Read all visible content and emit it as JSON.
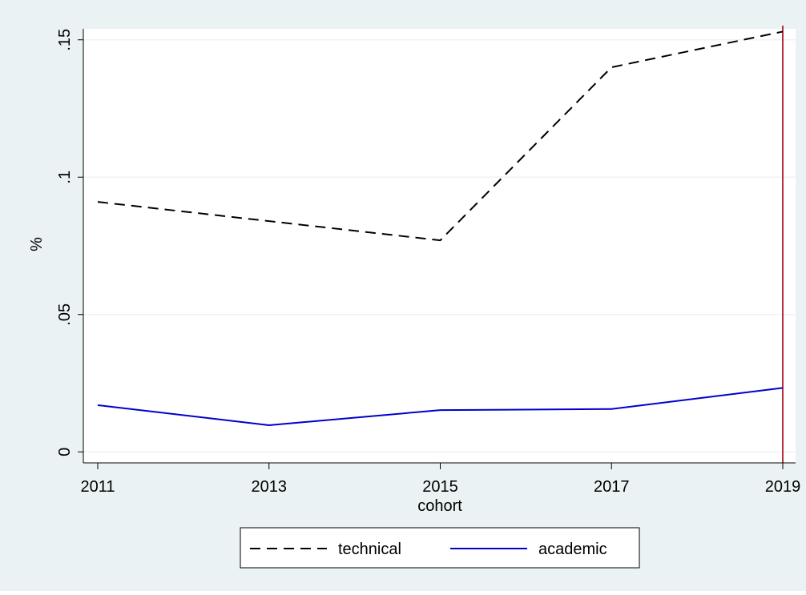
{
  "chart_data": {
    "type": "line",
    "title": "",
    "xlabel": "cohort",
    "ylabel": "%",
    "x": [
      2011,
      2013,
      2015,
      2017,
      2019
    ],
    "x_ticks": [
      2011,
      2013,
      2015,
      2017,
      2019
    ],
    "x_tick_labels": [
      "2011",
      "2013",
      "2015",
      "2017",
      "2019"
    ],
    "xlim": [
      2011,
      2019
    ],
    "y_ticks": [
      0,
      0.05,
      0.1,
      0.15
    ],
    "y_tick_labels": [
      "0",
      ".05",
      ".1",
      ".15"
    ],
    "ylim": [
      -0.004,
      0.154
    ],
    "grid": true,
    "legend": "bottom",
    "series": [
      {
        "name": "technical",
        "values": [
          0.091,
          0.084,
          0.077,
          0.14,
          0.153
        ],
        "color": "#000000",
        "style": "dashed"
      },
      {
        "name": "academic",
        "values": [
          0.017,
          0.0097,
          0.0152,
          0.0156,
          0.0233
        ],
        "color": "#0000cc",
        "style": "solid"
      }
    ],
    "reference_lines": [
      {
        "axis": "x",
        "value": 2019,
        "color": "#b2182b"
      }
    ],
    "colors": {
      "outer_background": "#eaf2f3",
      "plot_background": "#ffffff",
      "grid": "#eaf2f3"
    }
  }
}
